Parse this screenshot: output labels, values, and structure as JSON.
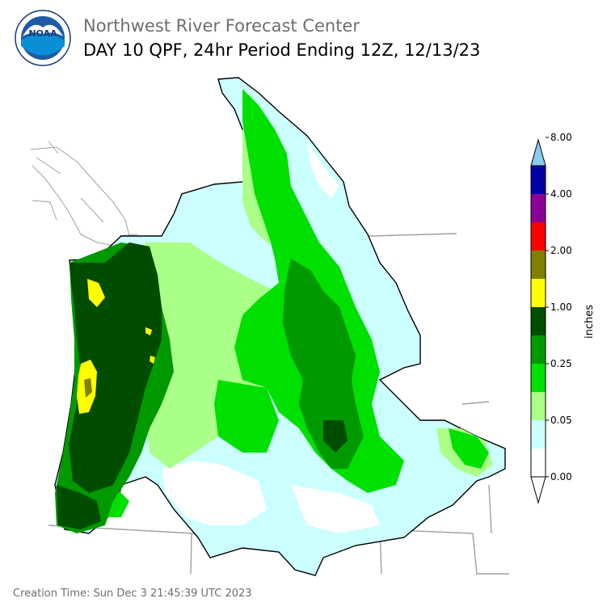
{
  "header": {
    "org_name": "Northwest River Forecast Center",
    "product_title": "DAY 10 QPF, 24hr Period Ending 12Z, 12/13/23",
    "logo_text": "NOAA"
  },
  "colorbar": {
    "title": "inches",
    "tick_labels": [
      "0.00",
      "0.05",
      "0.25",
      "1.00",
      "2.00",
      "4.00",
      "8.00"
    ],
    "colors": [
      "#ffffff",
      "#ccffff",
      "#aaff88",
      "#00e000",
      "#009900",
      "#004d00",
      "#ffff00",
      "#808000",
      "#ff0000",
      "#8b0095",
      "#0000a8",
      "#0044ff",
      "#88ccee"
    ]
  },
  "legend_colors": {
    "lt_0_05": "#ccffff",
    "0_05_0_25": "#aaff88",
    "0_25_a": "#00e000",
    "0_25_b": "#009900",
    "1_00": "#004d00",
    "above_1": "#ffff00",
    "above_1_b": "#808000"
  },
  "footer": {
    "creation_time": "Creation Time: Sun Dec 3 21:45:39 UTC 2023"
  }
}
